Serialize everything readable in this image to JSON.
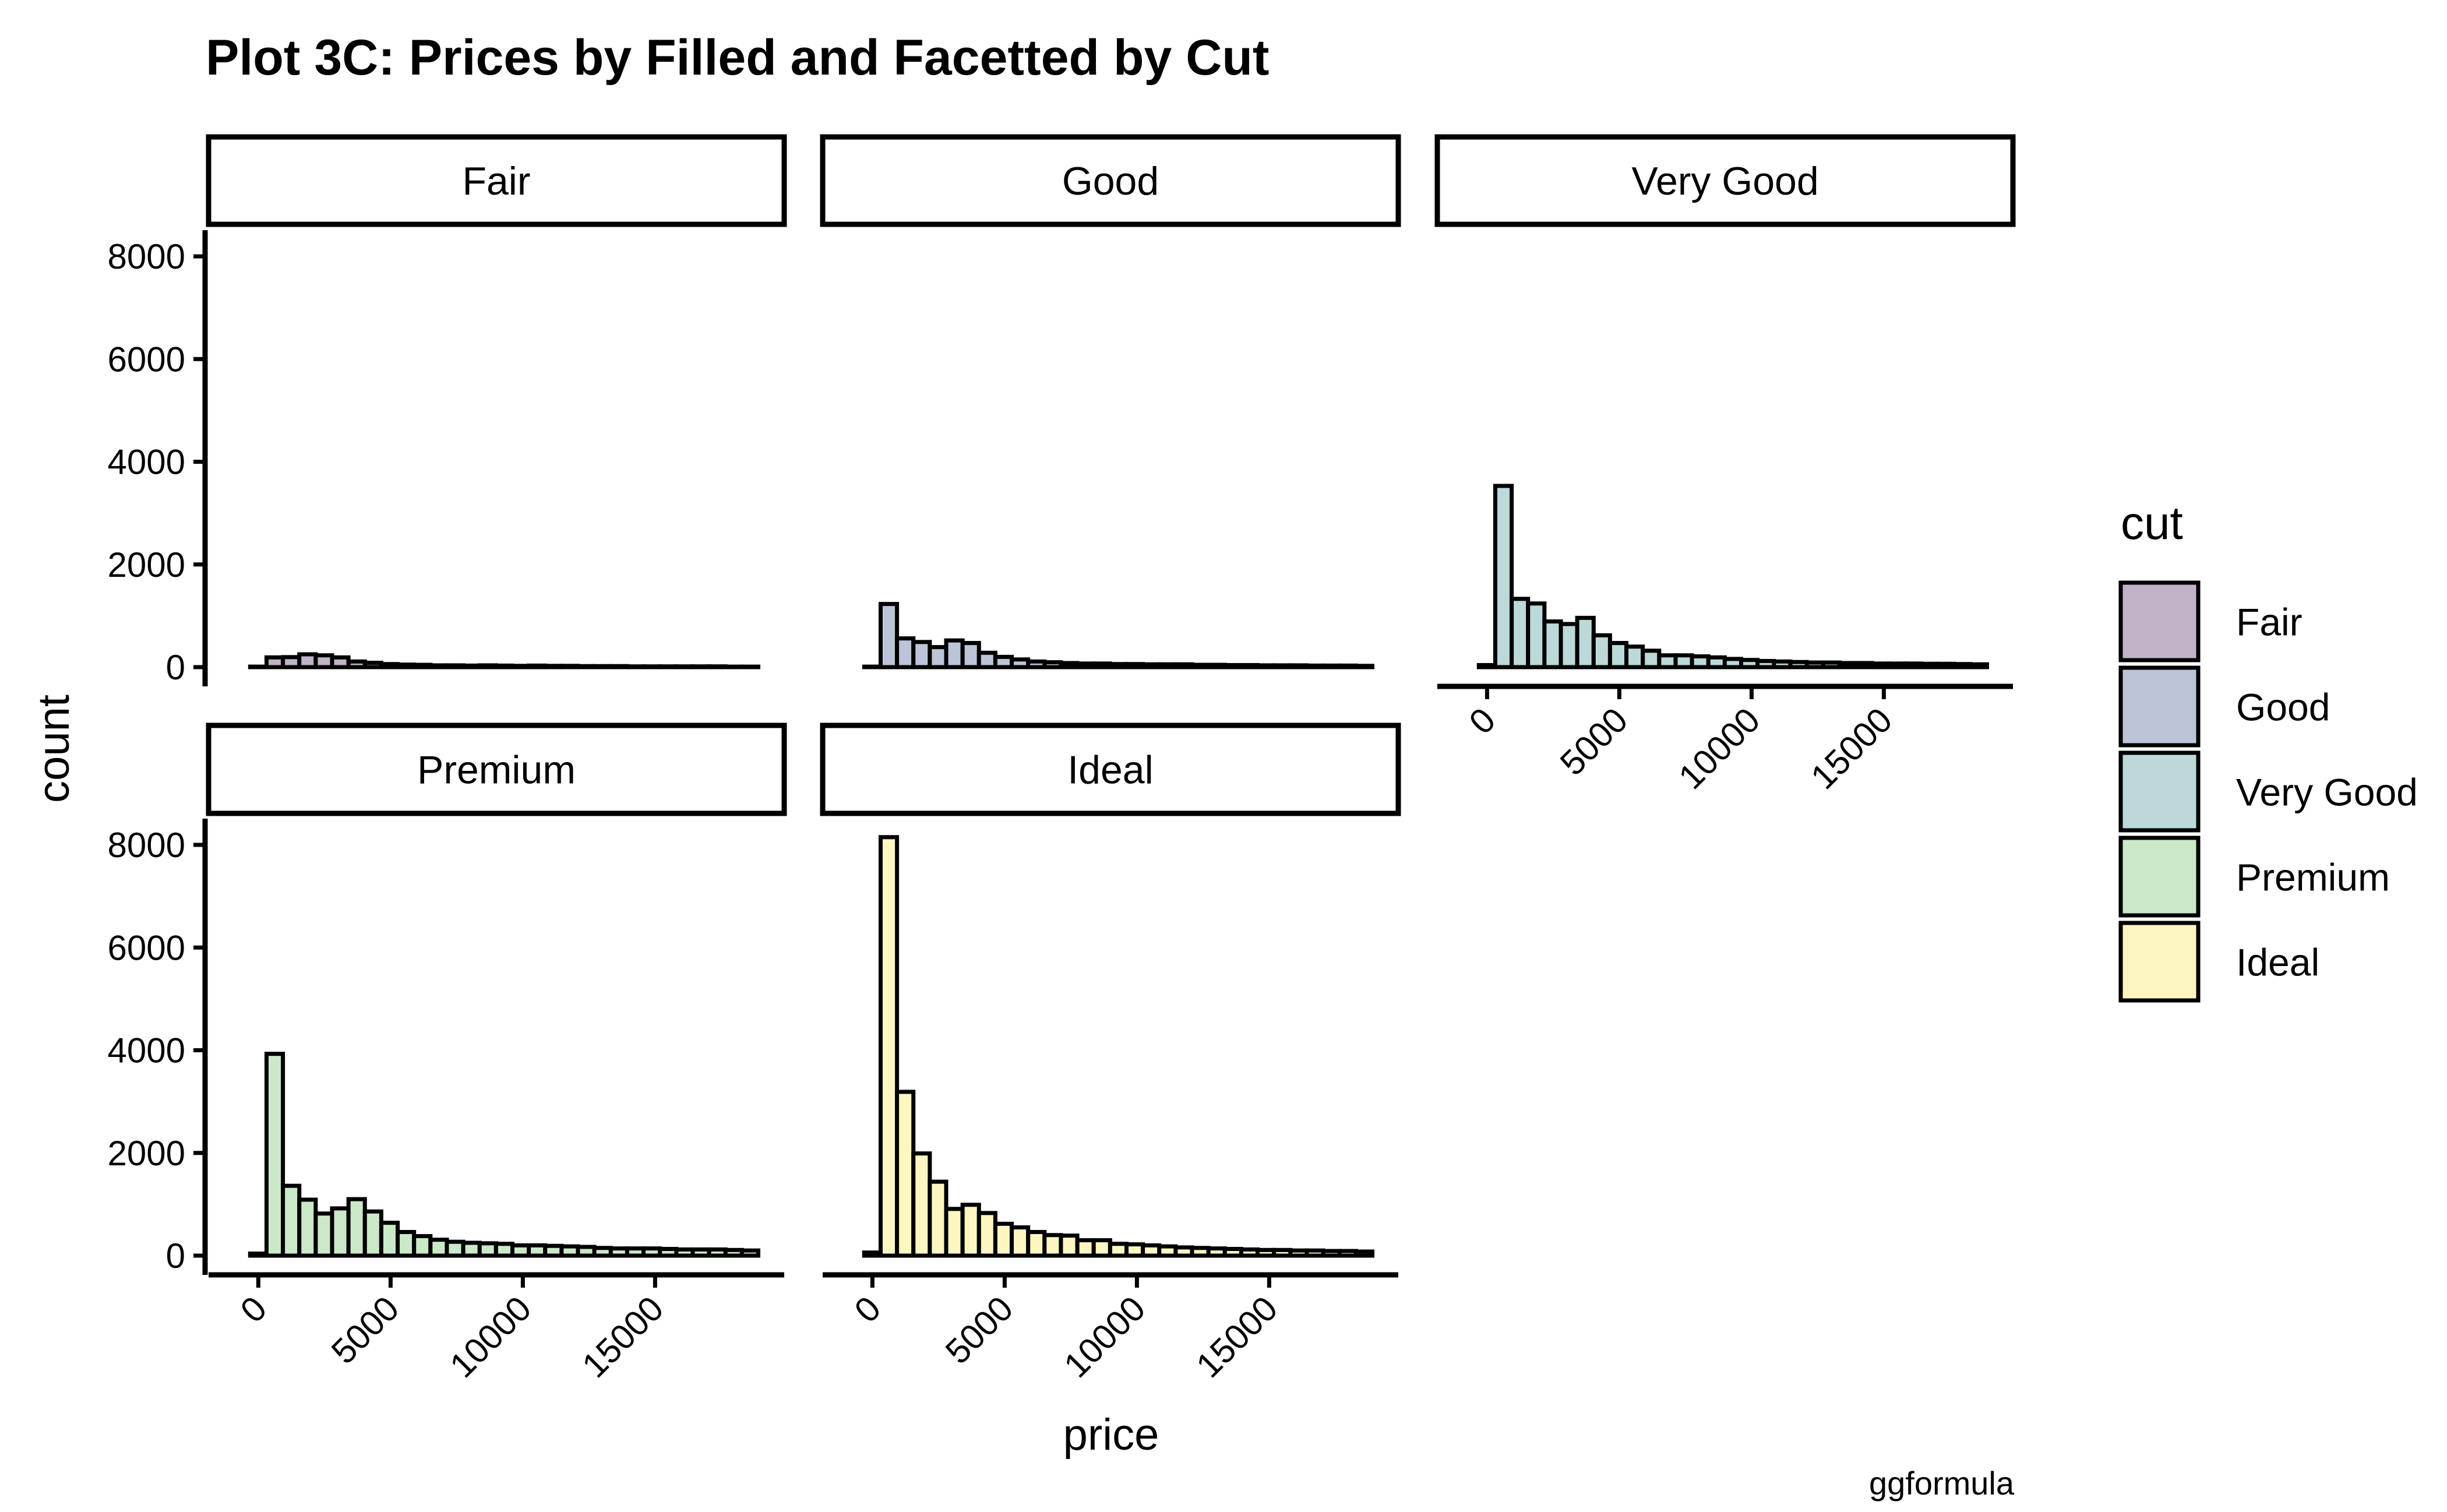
{
  "chart_data": {
    "type": "bar",
    "title": "Plot 3C: Prices by Filled and Facetted by Cut",
    "xlabel": "price",
    "ylabel": "count",
    "caption": "ggformula",
    "xlim": [
      -1000,
      19000
    ],
    "ylim": [
      0,
      8200
    ],
    "x_ticks": [
      0,
      5000,
      10000,
      15000
    ],
    "x_tick_labels": [
      "0",
      "5000",
      "10000",
      "15000"
    ],
    "y_ticks": [
      0,
      2000,
      4000,
      6000,
      8000
    ],
    "y_tick_labels": [
      "0",
      "2000",
      "4000",
      "6000",
      "8000"
    ],
    "bin_width": 619.7,
    "bin_start": -309.8,
    "legend": {
      "title": "cut",
      "position": "right"
    },
    "series": [
      {
        "name": "Fair",
        "color": "#c0b3c8",
        "values": [
          10,
          190,
          195,
          250,
          230,
          190,
          110,
          85,
          60,
          50,
          45,
          35,
          35,
          30,
          35,
          30,
          25,
          30,
          25,
          25,
          20,
          20,
          20,
          15,
          15,
          15,
          15,
          15,
          15,
          10,
          10
        ]
      },
      {
        "name": "Good",
        "color": "#bcc4d7",
        "values": [
          10,
          1230,
          560,
          490,
          390,
          520,
          470,
          280,
          200,
          150,
          110,
          95,
          80,
          70,
          70,
          60,
          60,
          55,
          55,
          55,
          45,
          45,
          40,
          40,
          35,
          35,
          35,
          30,
          30,
          30,
          25
        ]
      },
      {
        "name": "Very Good",
        "color": "#bcd8d8",
        "values": [
          40,
          3530,
          1330,
          1240,
          890,
          840,
          960,
          620,
          470,
          400,
          320,
          230,
          230,
          210,
          190,
          160,
          140,
          120,
          110,
          100,
          90,
          90,
          80,
          80,
          70,
          70,
          70,
          65,
          65,
          60,
          55
        ]
      },
      {
        "name": "Premium",
        "color": "#cbe8c8",
        "values": [
          40,
          3930,
          1360,
          1090,
          820,
          920,
          1100,
          860,
          640,
          460,
          380,
          310,
          270,
          250,
          240,
          230,
          200,
          200,
          190,
          180,
          170,
          150,
          140,
          140,
          140,
          130,
          120,
          120,
          120,
          110,
          100
        ]
      },
      {
        "name": "Ideal",
        "color": "#fdf6c1",
        "values": [
          60,
          8150,
          3190,
          1990,
          1440,
          910,
          990,
          830,
          620,
          550,
          460,
          400,
          390,
          300,
          300,
          230,
          220,
          200,
          180,
          160,
          150,
          140,
          130,
          120,
          110,
          110,
          100,
          100,
          90,
          90,
          80
        ]
      }
    ]
  }
}
